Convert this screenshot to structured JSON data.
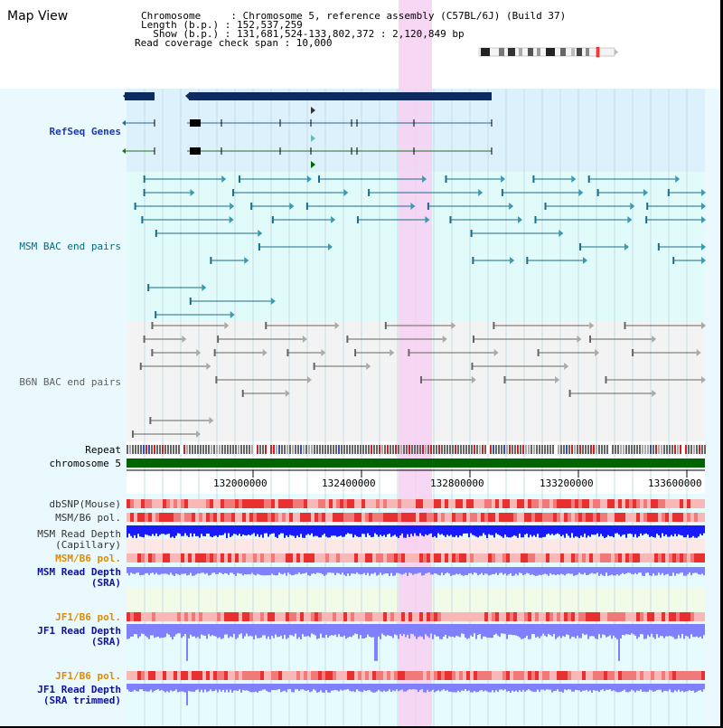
{
  "header": {
    "title": "Map View",
    "lines": [
      "Chromosome     : Chromosome 5, reference assembly (C57BL/6J) (Build 37)",
      "Length (b.p.) : 152,537,259",
      "  Show (b.p.) : 131,681,524-133,802,372 : 2,120,849 bp",
      "Read coverage check span : 10,000"
    ]
  },
  "tracks": {
    "refseq": "RefSeq Genes",
    "msm_bac": "MSM BAC end pairs",
    "b6n_bac": "B6N BAC end pairs",
    "repeat": "Repeat",
    "chromosome": "chromosome 5",
    "dbsnp": "dbSNP(Mouse)",
    "msm_b6_pol_1": "MSM/B6 pol.",
    "msm_depth_cap_1": "MSM Read Depth",
    "msm_depth_cap_2": "(Capillary)",
    "msm_b6_pol_2": "MSM/B6 pol.",
    "msm_depth_sra_1": "MSM Read Depth",
    "msm_depth_sra_2": "(SRA)",
    "jf1_b6_pol_1": "JF1/B6 pol.",
    "jf1_depth_sra_1": "JF1 Read Depth",
    "jf1_depth_sra_2": "(SRA)",
    "jf1_b6_pol_2": "JF1/B6 pol.",
    "jf1_depth_trim_1": "JF1 Read Depth",
    "jf1_depth_trim_2": "(SRA trimmed)"
  },
  "ruler": [
    "132000000",
    "132400000",
    "132800000",
    "133200000",
    "133600000"
  ],
  "colors": {
    "refseq_label": "#1a3ab0",
    "msm_label": "#006b80",
    "b6n_label": "#606060",
    "orange_label": "#e08a00",
    "blue_label": "#1010a0",
    "gene_dark": "#0d2b5e",
    "msm_line": "#1a6e8a",
    "b6n_line": "#666666",
    "highlight": "#f7d0f2",
    "chrom_bar": "#006400",
    "depth_blue": "#1a1aff",
    "depth_light": "#8080ff"
  }
}
